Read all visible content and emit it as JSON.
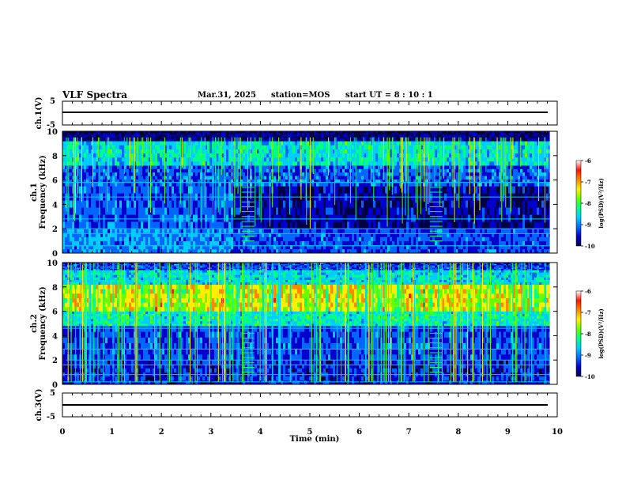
{
  "header": {
    "title": "VLF Spectra",
    "date": "Mar.31, 2025",
    "station": "station=MOS",
    "start_ut": "start  UT =   8  : 10 : 1"
  },
  "colors": {
    "background": "#ffffff",
    "spectrogram_background": "#000033",
    "trace": "#000000"
  },
  "colorscale": [
    "#000044",
    "#0000cc",
    "#0066ff",
    "#00ccff",
    "#00ff88",
    "#66ff00",
    "#ffee00",
    "#ff8800",
    "#ff1100",
    "#ffffff"
  ],
  "chart_data": [
    {
      "type": "line",
      "panel": "ch1-voltage",
      "ylabel": "ch.1(V)",
      "ylim": [
        -5,
        5
      ],
      "yticks": [
        "5",
        "-5"
      ],
      "x": [
        0,
        10
      ],
      "y": [
        0,
        0
      ]
    },
    {
      "type": "heatmap",
      "panel": "ch1-spectrogram",
      "ylabel": "ch.1\nFrequency (kHz)",
      "ylim": [
        0,
        10
      ],
      "yticks": [
        "0",
        "2",
        "4",
        "6",
        "8",
        "10"
      ],
      "xlim": [
        0,
        10
      ],
      "data_end_min": 9.85,
      "colorbar": {
        "label": "log(PSD)(V²/Hz)",
        "range": [
          -10,
          -6
        ],
        "ticks": [
          "-6",
          "-7",
          "-8",
          "-9",
          "-10"
        ]
      }
    },
    {
      "type": "heatmap",
      "panel": "ch2-spectrogram",
      "ylabel": "ch.2\nFrequency (kHz)",
      "ylim": [
        0,
        10
      ],
      "yticks": [
        "0",
        "2",
        "4",
        "6",
        "8",
        "10"
      ],
      "xlim": [
        0,
        10
      ],
      "data_end_min": 9.85,
      "colorbar": {
        "label": "log(PSD)(V²/Hz)",
        "range": [
          -10,
          -6
        ],
        "ticks": [
          "-6",
          "-7",
          "-8",
          "-9",
          "-10"
        ]
      }
    },
    {
      "type": "line",
      "panel": "ch3-voltage",
      "ylabel": "ch.3(V)",
      "ylim": [
        -5,
        5
      ],
      "yticks": [
        "5",
        "-5"
      ],
      "x": [
        0,
        10
      ],
      "y": [
        0,
        0
      ]
    }
  ],
  "xaxis": {
    "label": "Time (min)",
    "xlim": [
      0,
      10
    ],
    "ticks": [
      "0",
      "1",
      "2",
      "3",
      "4",
      "5",
      "6",
      "7",
      "8",
      "9",
      "10"
    ]
  }
}
